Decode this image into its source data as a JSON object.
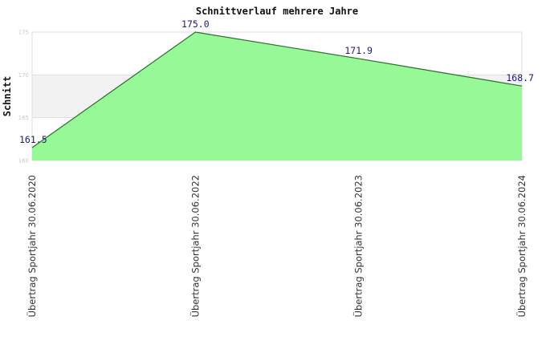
{
  "chart_data": {
    "type": "area",
    "title": "Schnittverlauf mehrere Jahre",
    "xlabel": "",
    "ylabel": "Schnitt",
    "categories": [
      "Übertrag Sportjahr 30.06.2020",
      "Übertrag Sportjahr 30.06.2022",
      "Übertrag Sportjahr 30.06.2023",
      "Übertrag Sportjahr 30.06.2024"
    ],
    "values": [
      161.5,
      175.0,
      171.9,
      168.7
    ],
    "data_labels": [
      "161.5",
      "175.0",
      "171.9",
      "168.7"
    ],
    "yticks": [
      160,
      165,
      170,
      175
    ],
    "ylim": [
      160,
      175
    ],
    "grid": "horizontal, alternating bands",
    "legend": "none",
    "colors": {
      "fill": "#90f890",
      "line": "#1a7a1a",
      "band": "#f2f2f2",
      "grid": "#dddddd",
      "frame": "#dddddd",
      "label": "#1a1a7a"
    }
  }
}
